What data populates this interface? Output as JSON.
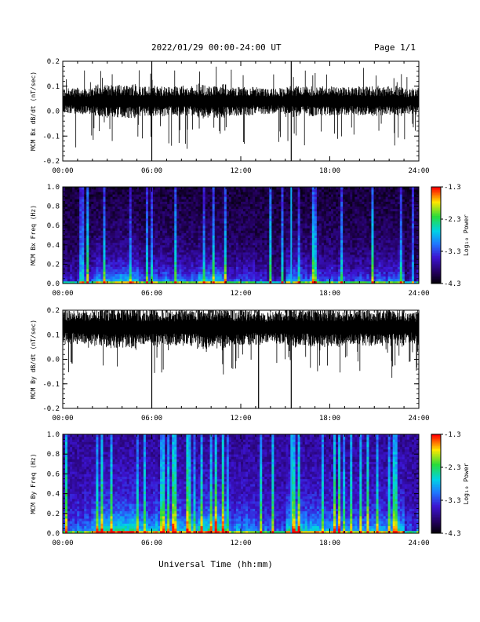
{
  "header": {
    "title": "2022/01/29  00:00-24:00 UT",
    "page": "Page 1/1"
  },
  "xlabel": "Universal Time (hh:mm)",
  "xticks": [
    "00:00",
    "06:00",
    "12:00",
    "18:00",
    "24:00"
  ],
  "colorbar": {
    "label": "Log₁₀ Power",
    "ticks": [
      "-1.3",
      "-2.3",
      "-3.3",
      "-4.3"
    ],
    "range": [
      -4.3,
      -1.3
    ]
  },
  "chart_data": [
    {
      "type": "line",
      "ylabel": "MCM Bx dB/dt (nT/sec)",
      "xlim": [
        0,
        24
      ],
      "ylim": [
        -0.2,
        0.2
      ],
      "yticks": [
        "0.2",
        "0.1",
        "0.0",
        "-0.1",
        "-0.2"
      ],
      "baseline": 0.04,
      "noise_band": [
        -0.01,
        0.1
      ],
      "notable_spikes_hours": [
        6.0,
        15.4
      ],
      "extremes": {
        "min": -0.2,
        "max": 0.2
      }
    },
    {
      "type": "heatmap",
      "ylabel": "MCM Bx Freq (Hz)",
      "xlim": [
        0,
        24
      ],
      "ylim": [
        0,
        1.0
      ],
      "yticks": [
        "1.0",
        "0.8",
        "0.6",
        "0.4",
        "0.2",
        "0.0"
      ],
      "zlabel": "Log10 Power",
      "zlim": [
        -4.3,
        -1.3
      ]
    },
    {
      "type": "line",
      "ylabel": "MCM By dB/dt (nT/sec)",
      "xlim": [
        0,
        24
      ],
      "ylim": [
        -0.2,
        0.2
      ],
      "yticks": [
        "0.2",
        "0.1",
        "0.0",
        "-0.1",
        "-0.2"
      ],
      "baseline": 0.13,
      "noise_band": [
        0.06,
        0.2
      ],
      "notable_spikes_hours": [
        6.0,
        13.2,
        15.4
      ],
      "extremes": {
        "min": -0.2,
        "max": 0.2
      }
    },
    {
      "type": "heatmap",
      "ylabel": "MCM By Freq (Hz)",
      "xlim": [
        0,
        24
      ],
      "ylim": [
        0,
        1.0
      ],
      "yticks": [
        "1.0",
        "0.8",
        "0.6",
        "0.4",
        "0.2",
        "0.0"
      ],
      "zlabel": "Log10 Power",
      "zlim": [
        -4.3,
        -1.3
      ]
    }
  ]
}
